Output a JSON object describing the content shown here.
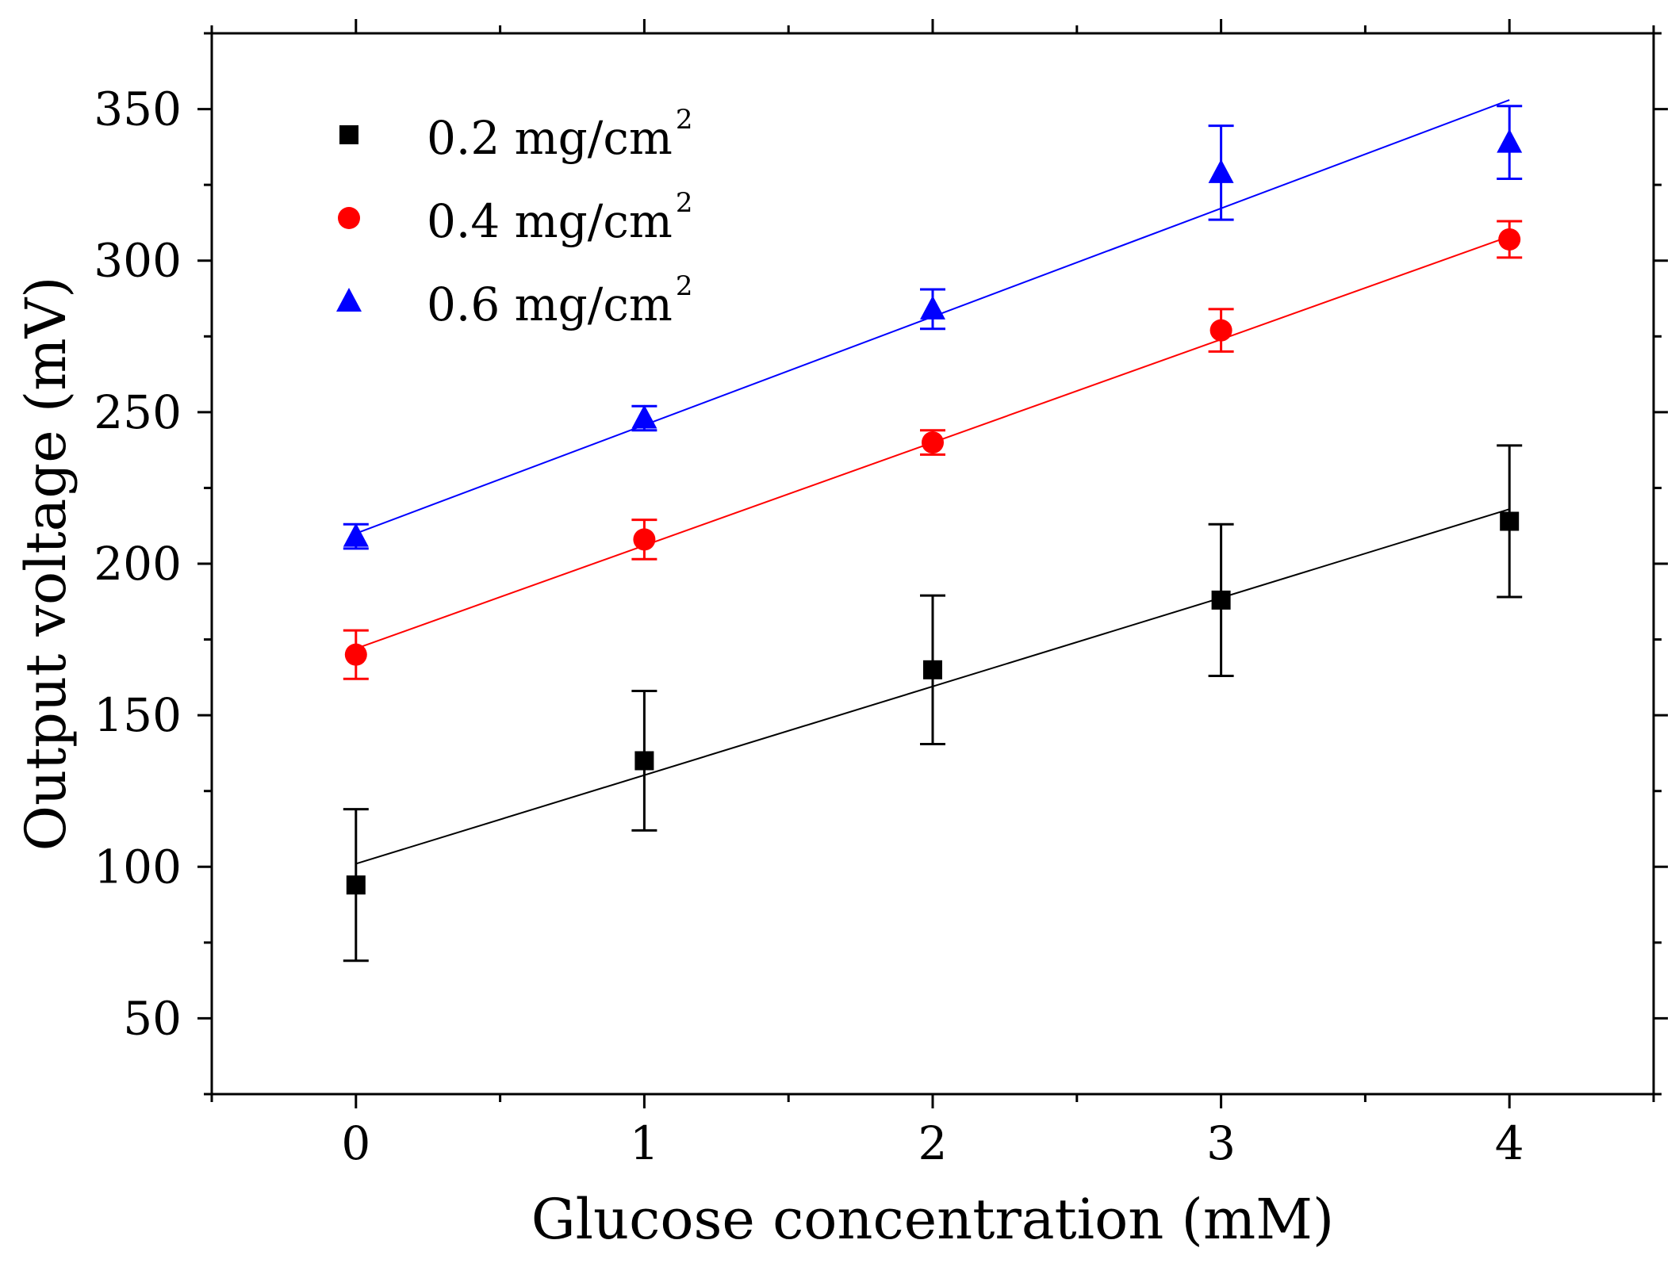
{
  "chart_data": {
    "type": "scatter",
    "title": "",
    "xlabel": "Glucose concentration (mM)",
    "ylabel": "Output voltage (mV)",
    "xlim": [
      -0.5,
      4.5
    ],
    "ylim": [
      25,
      375
    ],
    "xticks": [
      0,
      1,
      2,
      3,
      4
    ],
    "xtick_labels": [
      "0",
      "1",
      "2",
      "3",
      "4"
    ],
    "yticks": [
      50,
      100,
      150,
      200,
      250,
      300,
      350
    ],
    "ytick_labels": [
      "50",
      "100",
      "150",
      "200",
      "250",
      "300",
      "350"
    ],
    "grid": false,
    "legend_position": "top-left",
    "series": [
      {
        "name": "0.2 mg/cm",
        "name_sup": "2",
        "color": "#000000",
        "marker": "square",
        "x": [
          0,
          1,
          2,
          3,
          4
        ],
        "y": [
          94,
          135,
          165,
          188,
          214
        ],
        "error": [
          25,
          23,
          24.5,
          25,
          25
        ],
        "fit": [
          101,
          218
        ]
      },
      {
        "name": "0.4 mg/cm",
        "name_sup": "2",
        "color": "#ff0000",
        "marker": "circle",
        "x": [
          0,
          1,
          2,
          3,
          4
        ],
        "y": [
          170,
          208,
          240,
          277,
          307
        ],
        "error": [
          8,
          6.5,
          4,
          7,
          6
        ],
        "fit": [
          172,
          308
        ]
      },
      {
        "name": "0.6 mg/cm",
        "name_sup": "2",
        "color": "#0000ff",
        "marker": "triangle",
        "x": [
          0,
          1,
          2,
          3,
          4
        ],
        "y": [
          209,
          248,
          284,
          329,
          339
        ],
        "error": [
          4,
          4,
          6.5,
          15.5,
          12
        ],
        "fit": [
          210,
          353
        ]
      }
    ]
  }
}
